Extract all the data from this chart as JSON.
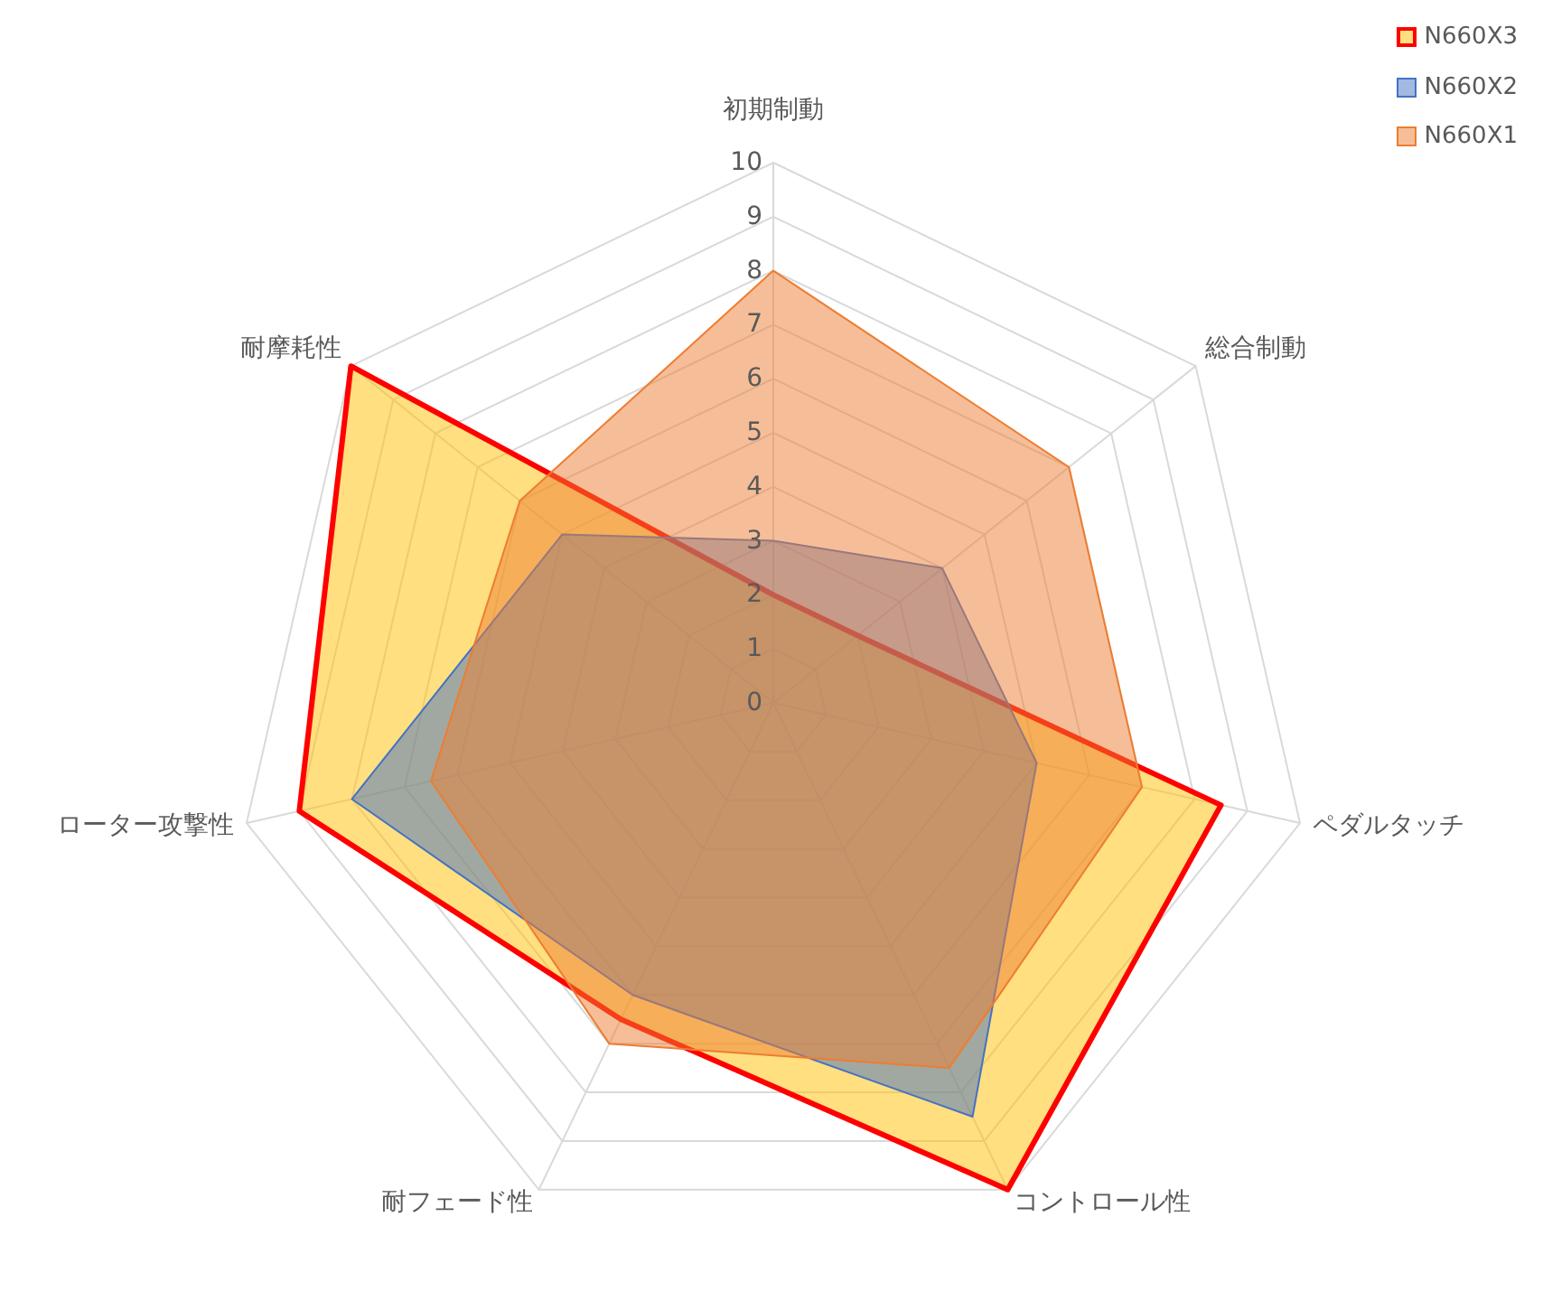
{
  "chart_data": {
    "type": "radar",
    "categories": [
      "初期制動",
      "総合制動",
      "ペダルタッチ",
      "コントロール性",
      "耐フェード性",
      "ローター攻撃性",
      "耐摩耗性"
    ],
    "series": [
      {
        "name": "N660X3",
        "color": "#ff0000",
        "values": [
          2,
          2,
          8.5,
          10,
          6.5,
          9,
          10
        ]
      },
      {
        "name": "N660X2",
        "color": "#4472c4",
        "values": [
          3,
          4,
          5,
          8.5,
          6,
          8,
          5
        ]
      },
      {
        "name": "N660X1",
        "color": "#ed7d31",
        "values": [
          8,
          7,
          7,
          7.5,
          7,
          6.5,
          6
        ]
      }
    ],
    "ylim": [
      0,
      10
    ],
    "yticks": [
      0,
      1,
      2,
      3,
      4,
      5,
      6,
      7,
      8,
      9,
      10
    ],
    "grid": true,
    "legend": "top right"
  }
}
